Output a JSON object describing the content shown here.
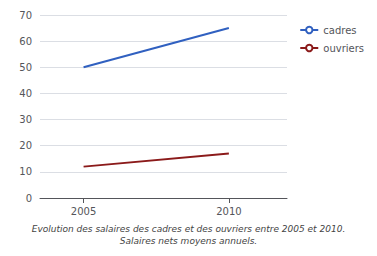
{
  "chart_data": {
    "type": "line",
    "x": [
      2005,
      2010
    ],
    "series": [
      {
        "name": "cadres",
        "color": "#3060c0",
        "values": [
          50,
          65
        ]
      },
      {
        "name": "ouvriers",
        "color": "#8b1a1a",
        "values": [
          12,
          17
        ]
      }
    ],
    "xlim": [
      2003.5,
      2012
    ],
    "xticks": [
      2005,
      2010
    ],
    "ylim": [
      0,
      70
    ],
    "yticks": [
      0,
      10,
      20,
      30,
      40,
      50,
      60,
      70
    ],
    "grid": true,
    "legend": "right",
    "annotations": [
      "Evolution des salaires des cadres et des ouvriers entre 2005 et 2010.",
      "Salaires nets moyens annuels."
    ]
  }
}
